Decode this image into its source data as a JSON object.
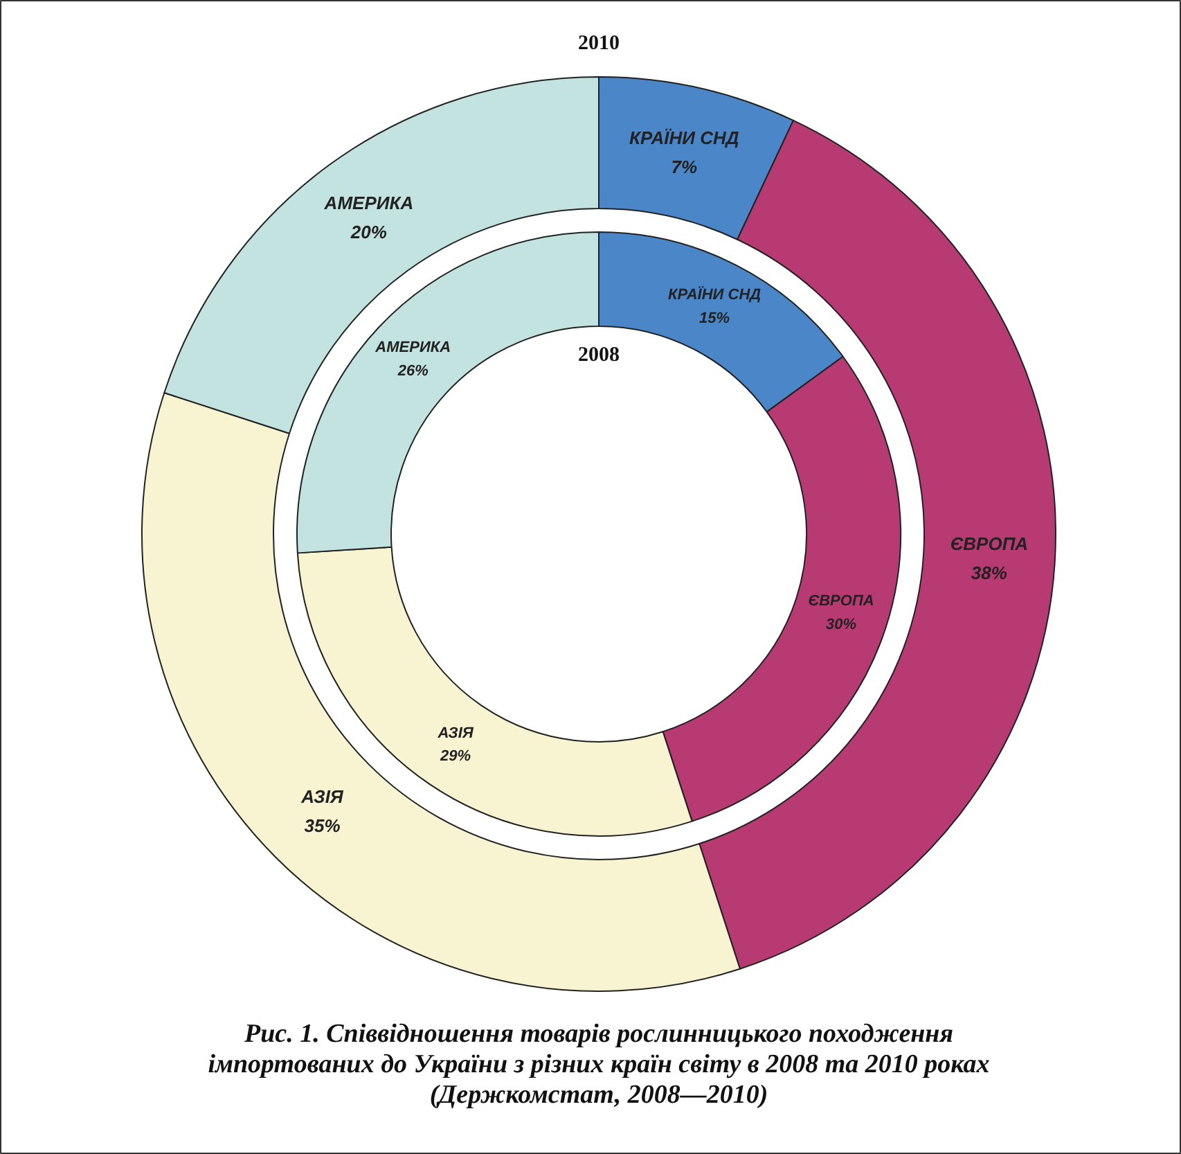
{
  "chart_data": {
    "type": "donut",
    "categories": [
      "КРАЇНИ СНД",
      "ЄВРОПА",
      "АЗІЯ",
      "АМЕРИКА"
    ],
    "colors": [
      "#4a86c8",
      "#b83a72",
      "#f8f3d0",
      "#c2e3df"
    ],
    "series": [
      {
        "name": "2010",
        "values": [
          7,
          38,
          35,
          20
        ],
        "value_labels": [
          "7%",
          "38%",
          "35%",
          "20%"
        ]
      },
      {
        "name": "2008",
        "values": [
          15,
          30,
          29,
          26
        ],
        "value_labels": [
          "15%",
          "30%",
          "29%",
          "26%"
        ]
      }
    ],
    "legend": false,
    "annotations": [
      "Рис. 1. Співвідношення товарів рослинницького походження\nімпортованих до України з різних країн світу в 2008 та 2010 роках\n(Держкомстат, 2008—2010)"
    ]
  }
}
